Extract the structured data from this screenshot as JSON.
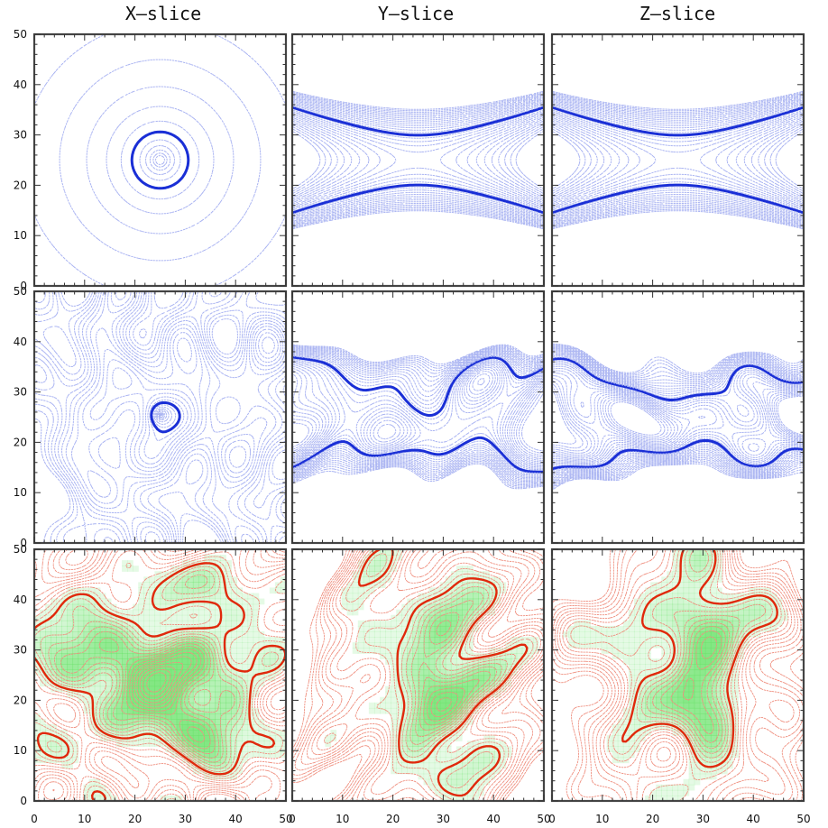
{
  "figure": {
    "column_titles": [
      "X–slice",
      "Y–slice",
      "Z–slice"
    ]
  },
  "colors": {
    "blue_light": "#aab4f2",
    "blue_dark": "#1a2fd6",
    "green": "#6de36d",
    "green_light": "#b9f2b0",
    "red_light": "#ef8f7f",
    "red_dark": "#e0290c",
    "frame": "#444444"
  },
  "chart_data": [
    {
      "type": "contour",
      "row": 0,
      "col": 0,
      "kind": "point-centered",
      "center": [
        25,
        25
      ],
      "zero_contour_radius": 6,
      "palette": "blue",
      "xlim": [
        0,
        50
      ],
      "ylim": [
        0,
        50
      ]
    },
    {
      "type": "contour",
      "row": 0,
      "col": 1,
      "kind": "dipole-saddle",
      "center": [
        25,
        25
      ],
      "palette": "blue",
      "xlim": [
        0,
        50
      ],
      "ylim": [
        0,
        50
      ]
    },
    {
      "type": "contour",
      "row": 0,
      "col": 2,
      "kind": "dipole-saddle",
      "center": [
        25,
        25
      ],
      "palette": "blue",
      "xlim": [
        0,
        50
      ],
      "ylim": [
        0,
        50
      ]
    },
    {
      "type": "contour",
      "row": 1,
      "col": 0,
      "kind": "noisy",
      "palette": "blue",
      "xlim": [
        0,
        50
      ],
      "ylim": [
        0,
        50
      ]
    },
    {
      "type": "contour",
      "row": 1,
      "col": 1,
      "kind": "noisy-saddle",
      "palette": "blue",
      "xlim": [
        0,
        50
      ],
      "ylim": [
        0,
        50
      ]
    },
    {
      "type": "contour",
      "row": 1,
      "col": 2,
      "kind": "noisy-saddle",
      "palette": "blue",
      "xlim": [
        0,
        50
      ],
      "ylim": [
        0,
        50
      ]
    },
    {
      "type": "contour",
      "row": 2,
      "col": 0,
      "kind": "smoothed-dense",
      "palette": "green-red",
      "xlim": [
        0,
        50
      ],
      "ylim": [
        0,
        50
      ]
    },
    {
      "type": "contour",
      "row": 2,
      "col": 1,
      "kind": "smoothed",
      "palette": "green-red",
      "xlim": [
        0,
        50
      ],
      "ylim": [
        0,
        50
      ]
    },
    {
      "type": "contour",
      "row": 2,
      "col": 2,
      "kind": "smoothed",
      "palette": "green-red",
      "xlim": [
        0,
        50
      ],
      "ylim": [
        0,
        50
      ]
    }
  ],
  "axes": {
    "x_ticks": [
      0,
      10,
      20,
      30,
      40,
      50
    ],
    "y_ticks": [
      0,
      10,
      20,
      30,
      40,
      50
    ],
    "x_tick_labels": [
      "0",
      "10",
      "20",
      "30",
      "40",
      "50"
    ],
    "y_tick_labels": [
      "0",
      "10",
      "20",
      "30",
      "40",
      "50"
    ],
    "range": [
      0,
      50
    ]
  }
}
